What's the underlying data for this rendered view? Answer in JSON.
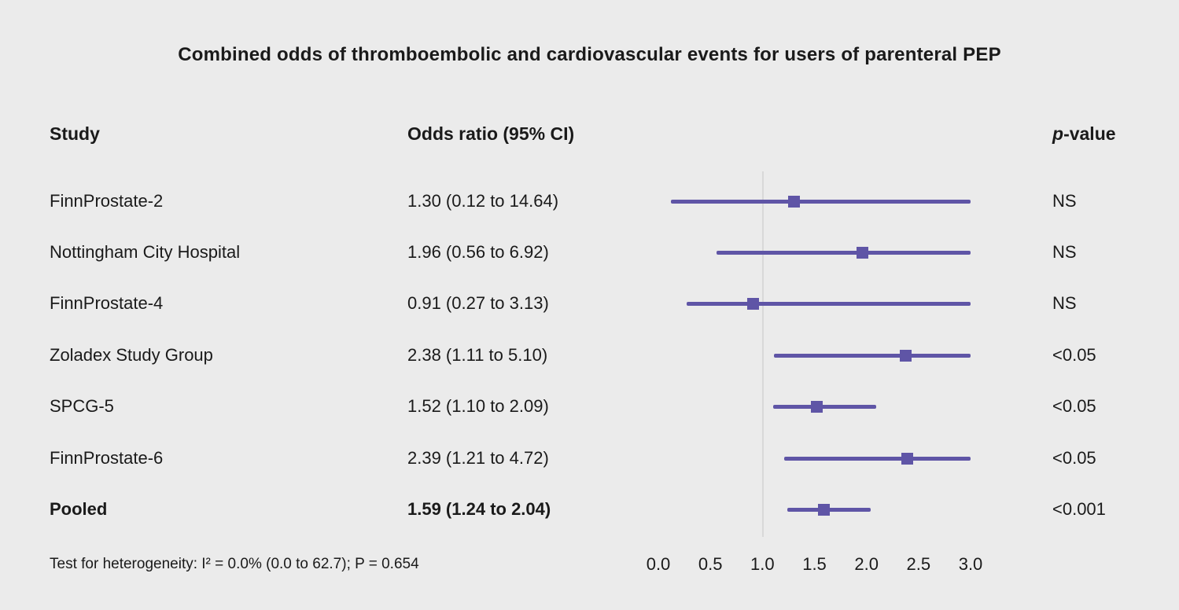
{
  "title": "Combined odds of thromboembolic and cardiovascular events for users of parenteral PEP",
  "header": {
    "study": "Study",
    "odds_ratio": "Odds ratio (95% CI)",
    "p_italic": "p",
    "p_rest": "-value"
  },
  "footer": {
    "heterogeneity": "Test for heterogeneity: I² = 0.0% (0.0 to 62.7); P = 0.654"
  },
  "colors": {
    "accent": "#5f55a6",
    "background": "#ebebeb",
    "gridline": "#d8d8d8",
    "text": "#1a1a1a"
  },
  "chart_data": {
    "type": "scatter",
    "subtype": "forest-plot",
    "title": "Combined odds of thromboembolic and cardiovascular events for users of parenteral PEP",
    "xlabel": "",
    "ylabel": "",
    "axis": {
      "min": 0,
      "max": 3,
      "tick_step": 0.5,
      "tick_labels": [
        "0.0",
        "0.5",
        "1.0",
        "1.5",
        "2.0",
        "2.5",
        "3.0"
      ],
      "reference_line": 1.0,
      "note": "CI lines extending beyond 3.0 are clipped at axis max"
    },
    "rows": [
      {
        "study": "FinnProstate-2",
        "or_text": "1.30 (0.12 to 14.64)",
        "or": 1.3,
        "ci_low": 0.12,
        "ci_high": 14.64,
        "p": "NS",
        "bold": false
      },
      {
        "study": "Nottingham City Hospital",
        "or_text": "1.96 (0.56 to 6.92)",
        "or": 1.96,
        "ci_low": 0.56,
        "ci_high": 6.92,
        "p": "NS",
        "bold": false
      },
      {
        "study": "FinnProstate-4",
        "or_text": "0.91 (0.27 to 3.13)",
        "or": 0.91,
        "ci_low": 0.27,
        "ci_high": 3.13,
        "p": "NS",
        "bold": false
      },
      {
        "study": "Zoladex Study Group",
        "or_text": "2.38 (1.11 to 5.10)",
        "or": 2.38,
        "ci_low": 1.11,
        "ci_high": 5.1,
        "p": "<0.05",
        "bold": false
      },
      {
        "study": "SPCG-5",
        "or_text": "1.52 (1.10 to 2.09)",
        "or": 1.52,
        "ci_low": 1.1,
        "ci_high": 2.09,
        "p": "<0.05",
        "bold": false
      },
      {
        "study": "FinnProstate-6",
        "or_text": "2.39 (1.21 to 4.72)",
        "or": 2.39,
        "ci_low": 1.21,
        "ci_high": 4.72,
        "p": "<0.05",
        "bold": false
      },
      {
        "study": "Pooled",
        "or_text": "1.59 (1.24 to 2.04)",
        "or": 1.59,
        "ci_low": 1.24,
        "ci_high": 2.04,
        "p": "<0.001",
        "bold": true
      }
    ]
  }
}
